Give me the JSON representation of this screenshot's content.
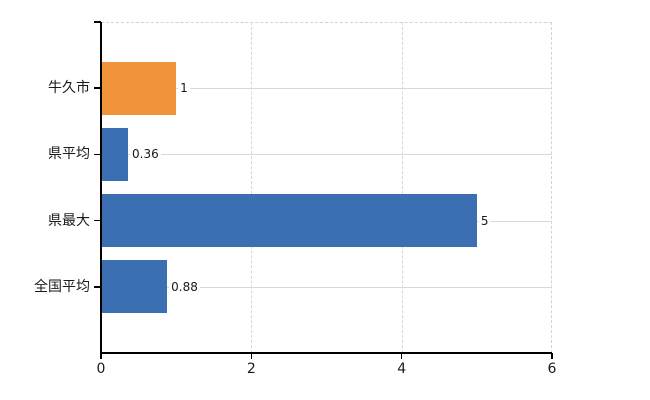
{
  "chart_data": {
    "type": "bar",
    "orientation": "horizontal",
    "categories": [
      "牛久市",
      "県平均",
      "県最大",
      "全国平均"
    ],
    "values": [
      1,
      0.36,
      5,
      0.88
    ],
    "value_labels": [
      "1",
      "0.36",
      "5",
      "0.88"
    ],
    "bar_colors": [
      "#f0943c",
      "#3c6fb1",
      "#3c6fb1",
      "#3c6fb1"
    ],
    "title": "",
    "xlabel": "",
    "ylabel": "",
    "xlim": [
      0,
      6
    ],
    "x_ticks": [
      0,
      2,
      4,
      6
    ],
    "x_tick_labels": [
      "0",
      "2",
      "4",
      "6"
    ],
    "grid": true,
    "legend_position": "none"
  },
  "colors": {
    "highlight_bar": "#f0943c",
    "default_bar": "#3c6fb1",
    "gridline_solid": "#d9d9d9",
    "gridline_dashed": "#d6d6d6",
    "axis": "#000000",
    "text": "#1a1a1a",
    "background": "#ffffff"
  }
}
